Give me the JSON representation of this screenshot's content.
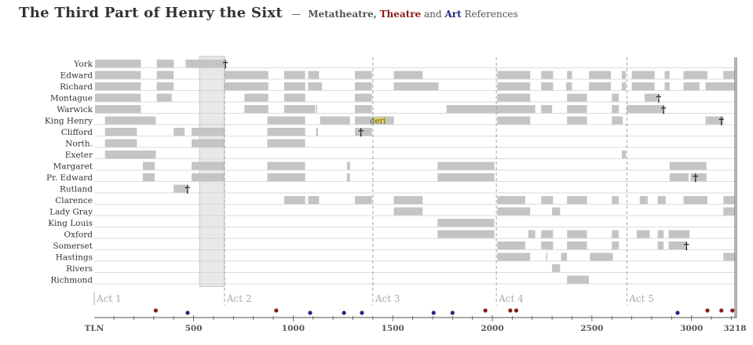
{
  "title": {
    "main": "The Third Part of Henry the Sixt",
    "dash": "—",
    "k1": "Metatheatre,",
    "k2": "Theatre",
    "and": "and",
    "k3": "Art",
    "rest": "References"
  },
  "colors": {
    "bar": "#c4c4c4",
    "rowline": "#cfcfcf",
    "highlight": "#e8e8e8",
    "act_line": "#9a9a9a",
    "act_label": "#aaaaaa",
    "theatre": "#8b1a1a",
    "art": "#1f2a80",
    "yellow": "#e8d25a",
    "text": "#333333"
  },
  "chart_data": {
    "type": "timeline",
    "x_axis": {
      "min": 1,
      "max": 3218,
      "start_label": "TLN",
      "end_label": "3218",
      "ticks": [
        500,
        1000,
        1500,
        2000,
        2500,
        3000
      ],
      "tick_labels": [
        "500",
        "1000",
        "1500",
        "2000",
        "2500",
        "3000"
      ],
      "minor_step": 100
    },
    "acts": [
      {
        "label": "Act 1",
        "start": 1
      },
      {
        "label": "Act 2",
        "start": 655
      },
      {
        "label": "Act 3",
        "start": 1400
      },
      {
        "label": "Act 4",
        "start": 2020
      },
      {
        "label": "Act 5",
        "start": 2675
      }
    ],
    "highlight_range": [
      530,
      655
    ],
    "characters": [
      {
        "name": "York",
        "spans": [
          [
            5,
            235
          ],
          [
            315,
            400
          ],
          [
            460,
            655
          ]
        ],
        "deaths": [
          660
        ],
        "markers": []
      },
      {
        "name": "Edward",
        "spans": [
          [
            5,
            235
          ],
          [
            315,
            400
          ],
          [
            655,
            875
          ],
          [
            955,
            1060
          ],
          [
            1075,
            1130
          ],
          [
            1310,
            1395
          ],
          [
            1505,
            1650
          ],
          [
            2025,
            2190
          ],
          [
            2245,
            2305
          ],
          [
            2375,
            2400
          ],
          [
            2485,
            2595
          ],
          [
            2650,
            2670
          ],
          [
            2700,
            2815
          ],
          [
            2865,
            2890
          ],
          [
            2960,
            3080
          ],
          [
            3160,
            3218
          ]
        ],
        "deaths": [],
        "markers": []
      },
      {
        "name": "Richard",
        "spans": [
          [
            5,
            235
          ],
          [
            315,
            400
          ],
          [
            655,
            875
          ],
          [
            955,
            1060
          ],
          [
            1075,
            1145
          ],
          [
            1310,
            1395
          ],
          [
            1505,
            1730
          ],
          [
            2025,
            2190
          ],
          [
            2245,
            2305
          ],
          [
            2370,
            2400
          ],
          [
            2485,
            2595
          ],
          [
            2650,
            2670
          ],
          [
            2700,
            2815
          ],
          [
            2865,
            2890
          ],
          [
            2960,
            3040
          ],
          [
            3070,
            3218
          ]
        ],
        "deaths": [],
        "markers": []
      },
      {
        "name": "Montague",
        "spans": [
          [
            5,
            235
          ],
          [
            315,
            390
          ],
          [
            755,
            875
          ],
          [
            955,
            1060
          ],
          [
            1310,
            1395
          ],
          [
            2025,
            2190
          ],
          [
            2375,
            2475
          ],
          [
            2600,
            2635
          ],
          [
            2765,
            2830
          ]
        ],
        "deaths": [
          2835
        ],
        "markers": []
      },
      {
        "name": "Warwick",
        "spans": [
          [
            5,
            235
          ],
          [
            755,
            875
          ],
          [
            955,
            1110
          ],
          [
            1115,
            1120
          ],
          [
            1310,
            1395
          ],
          [
            1770,
            2215
          ],
          [
            2245,
            2300
          ],
          [
            2375,
            2475
          ],
          [
            2600,
            2635
          ],
          [
            2675,
            2860
          ]
        ],
        "deaths": [
          2860
        ],
        "markers": []
      },
      {
        "name": "King Henry",
        "spans": [
          [
            55,
            310
          ],
          [
            870,
            1060
          ],
          [
            1135,
            1285
          ],
          [
            1310,
            1405
          ],
          [
            1405,
            1505
          ],
          [
            2025,
            2190
          ],
          [
            2375,
            2475
          ],
          [
            2600,
            2655
          ],
          [
            3070,
            3160
          ]
        ],
        "deaths": [
          3150
        ],
        "markers": [
          {
            "x": 1385,
            "text": "deri"
          }
        ],
        "yellow": [
          1405,
          1465
        ]
      },
      {
        "name": "Clifford",
        "spans": [
          [
            55,
            215
          ],
          [
            400,
            455
          ],
          [
            490,
            655
          ],
          [
            870,
            1060
          ],
          [
            1115,
            1125
          ],
          [
            1310,
            1395
          ]
        ],
        "deaths": [
          1340
        ],
        "markers": []
      },
      {
        "name": "North.",
        "spans": [
          [
            55,
            215
          ],
          [
            490,
            655
          ],
          [
            870,
            1060
          ]
        ],
        "deaths": [],
        "markers": []
      },
      {
        "name": "Exeter",
        "spans": [
          [
            55,
            310
          ],
          [
            2650,
            2670
          ]
        ],
        "deaths": [],
        "markers": []
      },
      {
        "name": "Margaret",
        "spans": [
          [
            245,
            305
          ],
          [
            490,
            655
          ],
          [
            870,
            1060
          ],
          [
            1270,
            1285
          ],
          [
            1725,
            2010
          ],
          [
            2890,
            3075
          ]
        ],
        "deaths": [],
        "markers": []
      },
      {
        "name": "Pr. Edward",
        "spans": [
          [
            245,
            305
          ],
          [
            490,
            655
          ],
          [
            870,
            1060
          ],
          [
            1270,
            1285
          ],
          [
            1725,
            2010
          ],
          [
            2890,
            2985
          ],
          [
            2995,
            3075
          ]
        ],
        "deaths": [
          3020
        ],
        "markers": []
      },
      {
        "name": "Rutland",
        "spans": [
          [
            400,
            470
          ]
        ],
        "deaths": [
          470
        ],
        "markers": []
      },
      {
        "name": "Clarence",
        "spans": [
          [
            955,
            1060
          ],
          [
            1075,
            1130
          ],
          [
            1310,
            1395
          ],
          [
            1505,
            1650
          ],
          [
            2025,
            2165
          ],
          [
            2245,
            2305
          ],
          [
            2375,
            2475
          ],
          [
            2600,
            2635
          ],
          [
            2740,
            2780
          ],
          [
            2830,
            2870
          ],
          [
            2960,
            3080
          ],
          [
            3160,
            3218
          ]
        ],
        "deaths": [],
        "markers": []
      },
      {
        "name": "Lady Gray",
        "spans": [
          [
            1505,
            1650
          ],
          [
            2025,
            2190
          ],
          [
            2300,
            2340
          ],
          [
            3160,
            3218
          ]
        ],
        "deaths": [],
        "markers": []
      },
      {
        "name": "King Louis",
        "spans": [
          [
            1725,
            2010
          ]
        ],
        "deaths": [],
        "markers": []
      },
      {
        "name": "Oxford",
        "spans": [
          [
            1725,
            2010
          ],
          [
            2180,
            2215
          ],
          [
            2245,
            2305
          ],
          [
            2375,
            2475
          ],
          [
            2600,
            2635
          ],
          [
            2725,
            2790
          ],
          [
            2830,
            2860
          ],
          [
            2885,
            2990
          ]
        ],
        "deaths": [],
        "markers": []
      },
      {
        "name": "Somerset",
        "spans": [
          [
            2025,
            2165
          ],
          [
            2245,
            2305
          ],
          [
            2375,
            2475
          ],
          [
            2600,
            2635
          ],
          [
            2830,
            2860
          ],
          [
            2885,
            2975
          ]
        ],
        "deaths": [
          2975
        ],
        "markers": []
      },
      {
        "name": "Hastings",
        "spans": [
          [
            2025,
            2190
          ],
          [
            2270,
            2275
          ],
          [
            2345,
            2375
          ],
          [
            2490,
            2605
          ],
          [
            3160,
            3218
          ]
        ],
        "deaths": [],
        "markers": []
      },
      {
        "name": "Rivers",
        "spans": [
          [
            2300,
            2340
          ]
        ],
        "deaths": [],
        "markers": []
      },
      {
        "name": "Richmond",
        "spans": [
          [
            2375,
            2485
          ]
        ],
        "deaths": [],
        "markers": []
      }
    ],
    "references": [
      {
        "x": 310,
        "kind": "theatre"
      },
      {
        "x": 470,
        "kind": "art"
      },
      {
        "x": 915,
        "kind": "theatre"
      },
      {
        "x": 1085,
        "kind": "art"
      },
      {
        "x": 1255,
        "kind": "art"
      },
      {
        "x": 1345,
        "kind": "art"
      },
      {
        "x": 1705,
        "kind": "art"
      },
      {
        "x": 1800,
        "kind": "art"
      },
      {
        "x": 1965,
        "kind": "theatre"
      },
      {
        "x": 2090,
        "kind": "theatre"
      },
      {
        "x": 2120,
        "kind": "theatre"
      },
      {
        "x": 2930,
        "kind": "art"
      },
      {
        "x": 3080,
        "kind": "theatre"
      },
      {
        "x": 3150,
        "kind": "theatre"
      },
      {
        "x": 3205,
        "kind": "theatre"
      }
    ]
  }
}
